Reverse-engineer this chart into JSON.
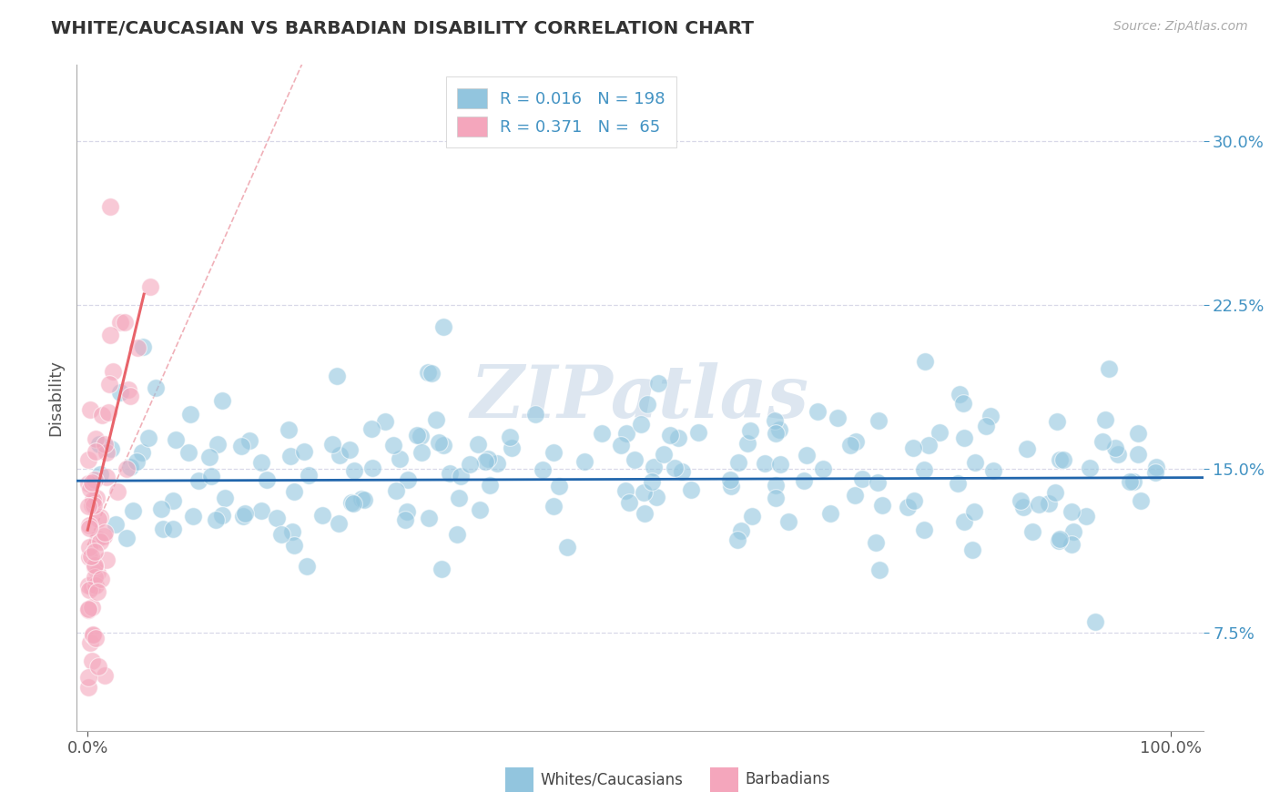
{
  "title": "WHITE/CAUCASIAN VS BARBADIAN DISABILITY CORRELATION CHART",
  "source": "Source: ZipAtlas.com",
  "ylabel": "Disability",
  "ytick_vals": [
    0.075,
    0.15,
    0.225,
    0.3
  ],
  "ytick_labels": [
    "7.5%",
    "15.0%",
    "22.5%",
    "30.0%"
  ],
  "xtick_vals": [
    0.0,
    1.0
  ],
  "xtick_labels": [
    "0.0%",
    "100.0%"
  ],
  "xlim": [
    -0.01,
    1.03
  ],
  "ylim": [
    0.03,
    0.335
  ],
  "legend_label1": "Whites/Caucasians",
  "legend_label2": "Barbadians",
  "blue_color": "#92c5de",
  "pink_color": "#f4a6bc",
  "blue_line_color": "#2166ac",
  "pink_line_color": "#e8636a",
  "pink_dash_color": "#f0b0b8",
  "grid_color": "#d8d8e8",
  "text_blue": "#4393c3",
  "watermark_color": "#dde6f0",
  "watermark_text": "ZIPatlas"
}
